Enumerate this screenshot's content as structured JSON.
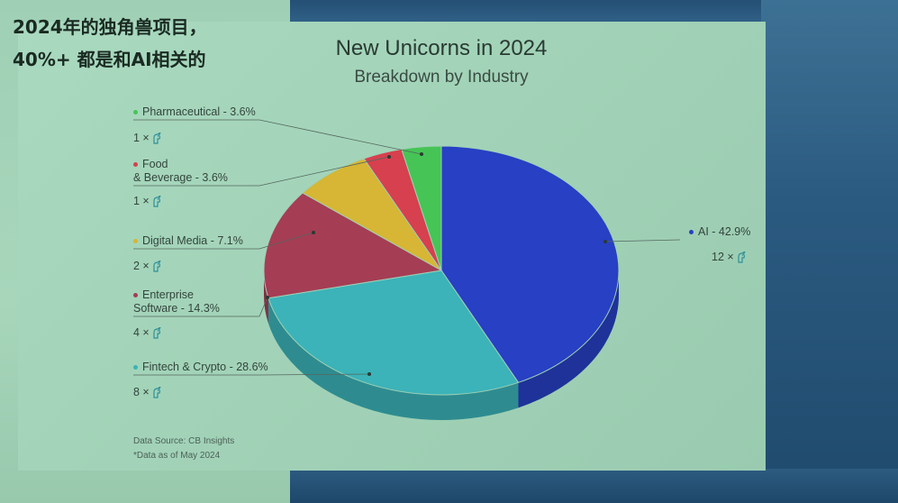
{
  "overlay": {
    "line1": "2024年的独角兽项目，",
    "line2": "40%+ 都是和AI相关的"
  },
  "chart_data": {
    "type": "pie",
    "title": "New Unicorns in 2024",
    "subtitle": "Breakdown by Industry",
    "slices": [
      {
        "label": "AI - 42.9%",
        "name": "AI",
        "percent": 42.9,
        "count": 12,
        "count_text": "12 ×",
        "color": "#2740c4"
      },
      {
        "label": "Fintech & Crypto - 28.6%",
        "name": "Fintech & Crypto",
        "percent": 28.6,
        "count": 8,
        "count_text": "8 ×",
        "color": "#3bb3b8"
      },
      {
        "label": "Enterprise\nSoftware - 14.3%",
        "name": "Enterprise Software",
        "percent": 14.3,
        "count": 4,
        "count_text": "4 ×",
        "color": "#a53d55"
      },
      {
        "label": "Digital Media - 7.1%",
        "name": "Digital Media",
        "percent": 7.1,
        "count": 2,
        "count_text": "2 ×",
        "color": "#d6b634"
      },
      {
        "label": "Food\n& Beverage - 3.6%",
        "name": "Food & Beverage",
        "percent": 3.6,
        "count": 1,
        "count_text": "1 ×",
        "color": "#d6404f"
      },
      {
        "label": "Pharmaceutical - 3.6%",
        "name": "Pharmaceutical",
        "percent": 3.6,
        "count": 1,
        "count_text": "1 ×",
        "color": "#46c456"
      }
    ],
    "source": "Data Source: CB Insights",
    "note": "*Data as of May 2024"
  }
}
